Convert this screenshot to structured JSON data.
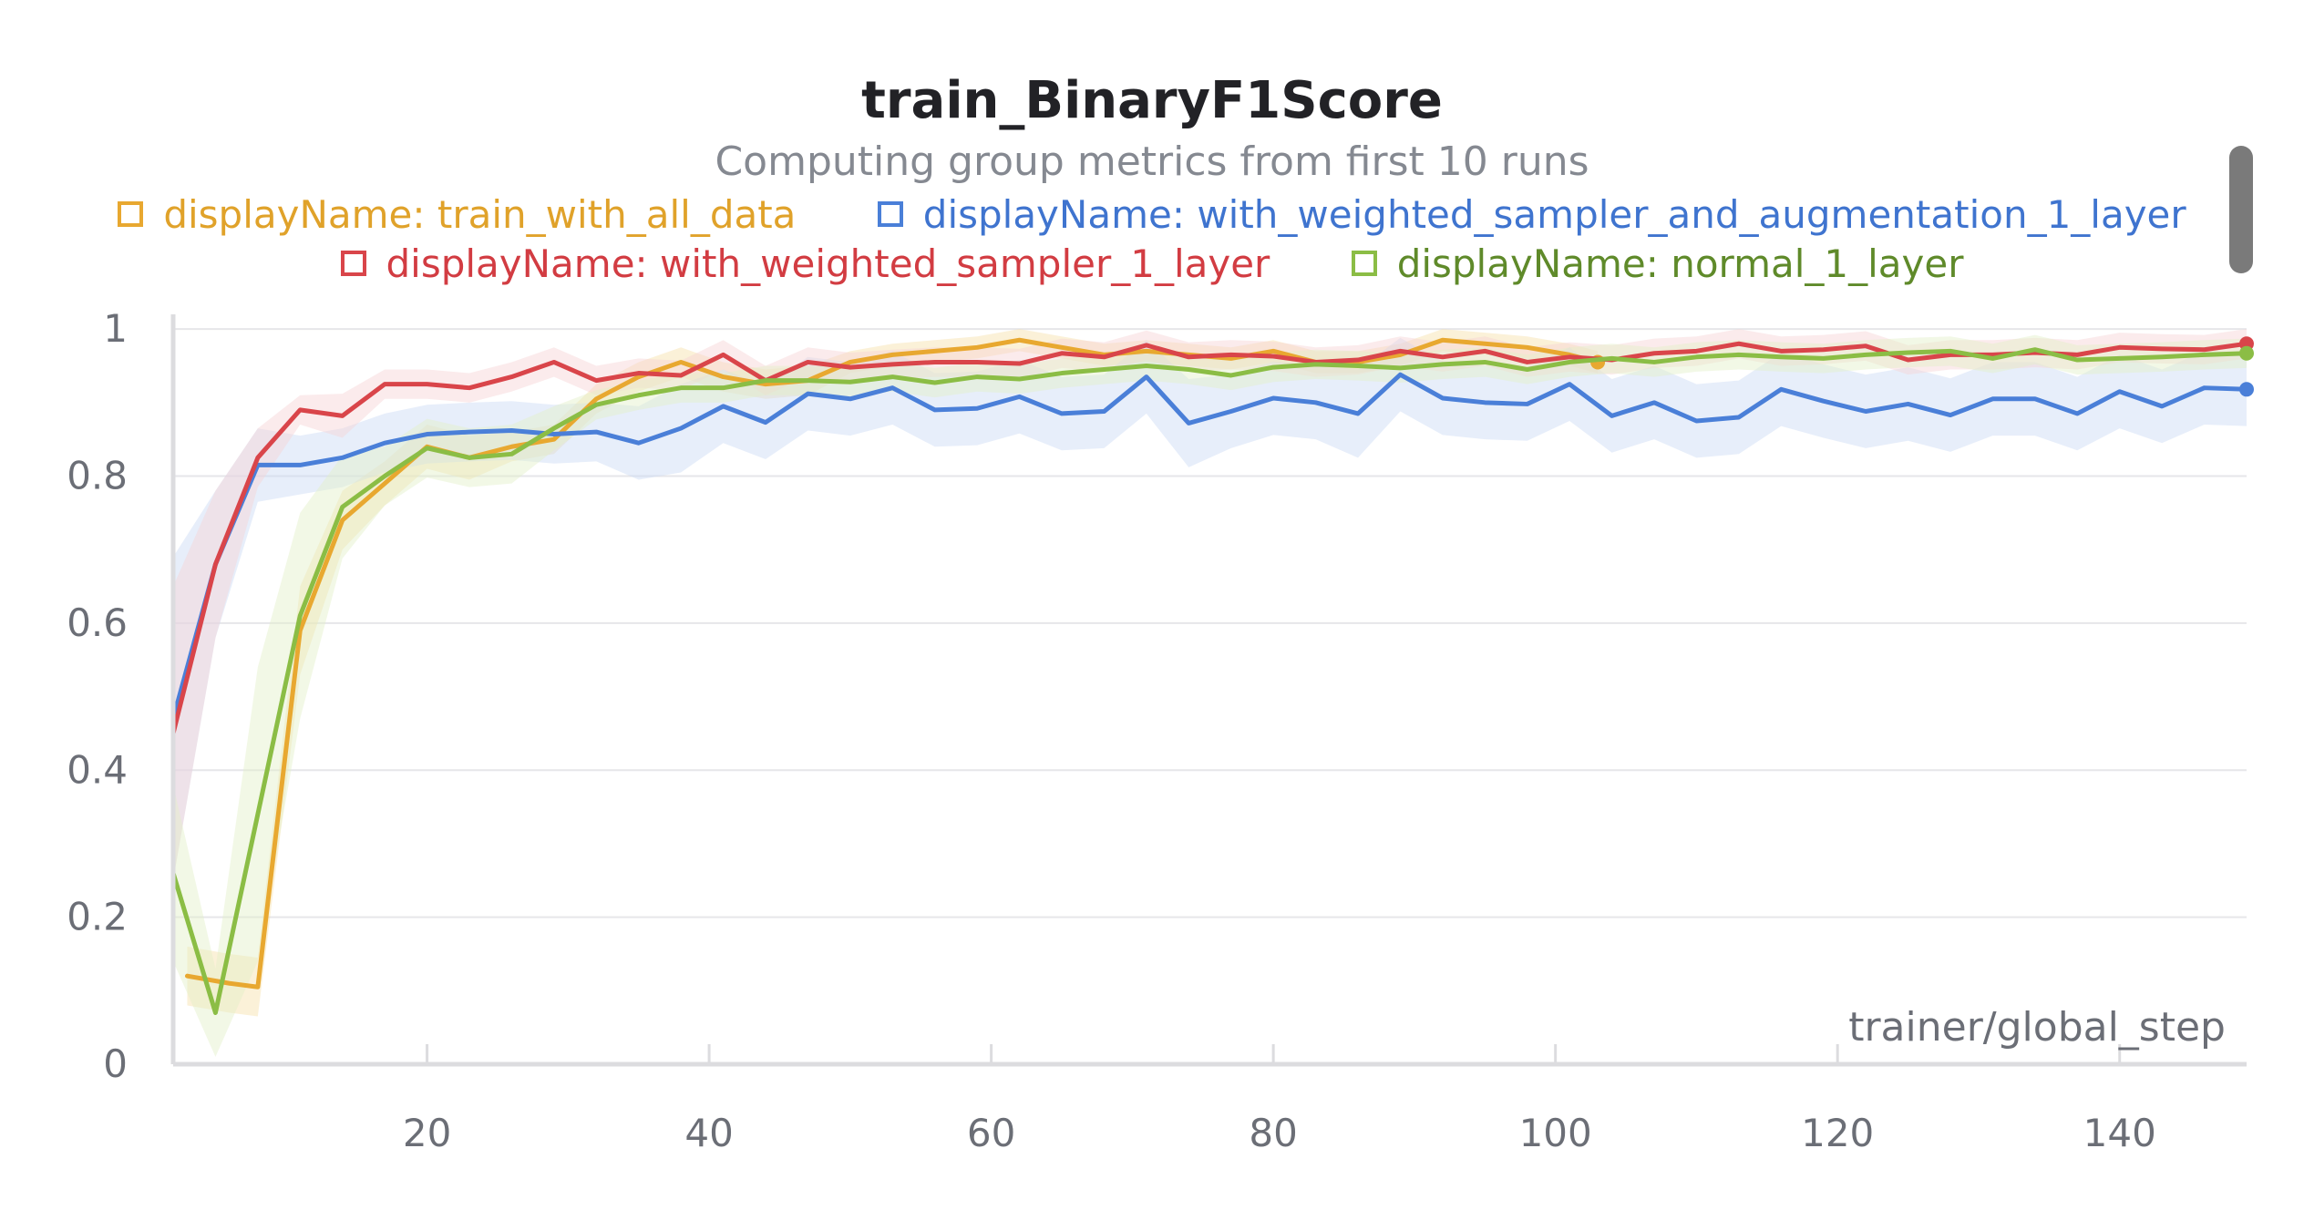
{
  "chart_data": {
    "type": "line",
    "title": "train_BinaryF1Score",
    "subtitle": "Computing group metrics from first 10 runs",
    "xlabel": "trainer/global_step",
    "ylabel": "",
    "xlim": [
      2,
      149
    ],
    "ylim": [
      0,
      1.02
    ],
    "x_ticks": [
      20,
      40,
      60,
      80,
      100,
      120,
      140
    ],
    "y_ticks": [
      0,
      0.2,
      0.4,
      0.6,
      0.8,
      1
    ],
    "y_tick_labels": [
      "0",
      "0.2",
      "0.4",
      "0.6",
      "0.8",
      "1"
    ],
    "grid": true,
    "legend_position": "top",
    "series": [
      {
        "name": "displayName: train_with_all_data",
        "color": "#e8a830",
        "band_color": "#f6dfa8",
        "x": [
          3,
          6,
          8,
          11,
          14,
          17,
          20,
          23,
          26,
          29,
          32,
          35,
          38,
          41,
          44,
          47,
          50,
          53,
          56,
          59,
          62,
          65,
          68,
          71,
          74,
          77,
          80,
          83,
          86,
          89,
          92,
          95,
          98,
          101,
          103
        ],
        "y": [
          0.12,
          0.11,
          0.105,
          0.59,
          0.74,
          0.79,
          0.84,
          0.825,
          0.84,
          0.85,
          0.905,
          0.935,
          0.955,
          0.935,
          0.925,
          0.93,
          0.955,
          0.965,
          0.97,
          0.975,
          0.985,
          0.975,
          0.965,
          0.97,
          0.965,
          0.96,
          0.97,
          0.955,
          0.955,
          0.965,
          0.985,
          0.98,
          0.975,
          0.965,
          0.955
        ],
        "band": [
          0.04,
          0.04,
          0.04,
          0.06,
          0.04,
          0.03,
          0.03,
          0.03,
          0.02,
          0.02,
          0.02,
          0.02,
          0.02,
          0.02,
          0.02,
          0.02,
          0.015,
          0.015,
          0.015,
          0.015,
          0.015,
          0.015,
          0.015,
          0.015,
          0.015,
          0.015,
          0.015,
          0.015,
          0.015,
          0.015,
          0.015,
          0.015,
          0.015,
          0.015,
          0.015
        ],
        "end_marker": true
      },
      {
        "name": "displayName: with_weighted_sampler_and_augmentation_1_layer",
        "color": "#4a7fd8",
        "band_color": "#c9daf5",
        "x": [
          2,
          5,
          8,
          11,
          14,
          17,
          20,
          23,
          26,
          29,
          32,
          35,
          38,
          41,
          44,
          47,
          50,
          53,
          56,
          59,
          62,
          65,
          68,
          71,
          74,
          77,
          80,
          83,
          86,
          89,
          92,
          95,
          98,
          101,
          104,
          107,
          110,
          113,
          116,
          119,
          122,
          125,
          128,
          131,
          134,
          137,
          140,
          143,
          146,
          149
        ],
        "y": [
          0.47,
          0.68,
          0.815,
          0.815,
          0.825,
          0.845,
          0.857,
          0.86,
          0.862,
          0.857,
          0.86,
          0.845,
          0.865,
          0.895,
          0.873,
          0.912,
          0.905,
          0.92,
          0.89,
          0.892,
          0.908,
          0.885,
          0.888,
          0.935,
          0.872,
          0.888,
          0.906,
          0.9,
          0.885,
          0.938,
          0.906,
          0.9,
          0.898,
          0.925,
          0.882,
          0.9,
          0.875,
          0.88,
          0.918,
          0.902,
          0.888,
          0.898,
          0.883,
          0.905,
          0.905,
          0.885,
          0.915,
          0.895,
          0.92,
          0.918
        ],
        "band": [
          0.22,
          0.1,
          0.05,
          0.04,
          0.04,
          0.04,
          0.04,
          0.04,
          0.04,
          0.04,
          0.04,
          0.05,
          0.06,
          0.05,
          0.05,
          0.05,
          0.05,
          0.05,
          0.05,
          0.05,
          0.05,
          0.05,
          0.05,
          0.05,
          0.06,
          0.05,
          0.05,
          0.05,
          0.06,
          0.05,
          0.05,
          0.05,
          0.05,
          0.05,
          0.05,
          0.05,
          0.05,
          0.05,
          0.05,
          0.05,
          0.05,
          0.05,
          0.05,
          0.05,
          0.05,
          0.05,
          0.05,
          0.05,
          0.05,
          0.05
        ],
        "end_marker": true
      },
      {
        "name": "displayName: with_weighted_sampler_1_layer",
        "color": "#d9454a",
        "band_color": "#f6d2d4",
        "x": [
          2,
          5,
          8,
          11,
          14,
          17,
          20,
          23,
          26,
          29,
          32,
          35,
          38,
          41,
          44,
          47,
          50,
          53,
          56,
          59,
          62,
          65,
          68,
          71,
          74,
          77,
          80,
          83,
          86,
          89,
          92,
          95,
          98,
          101,
          104,
          107,
          110,
          113,
          116,
          119,
          122,
          125,
          128,
          131,
          134,
          137,
          140,
          143,
          146,
          149
        ],
        "y": [
          0.45,
          0.68,
          0.825,
          0.89,
          0.882,
          0.925,
          0.925,
          0.92,
          0.935,
          0.955,
          0.93,
          0.94,
          0.937,
          0.965,
          0.93,
          0.955,
          0.948,
          0.952,
          0.955,
          0.955,
          0.953,
          0.967,
          0.962,
          0.978,
          0.962,
          0.965,
          0.963,
          0.955,
          0.958,
          0.97,
          0.962,
          0.97,
          0.955,
          0.962,
          0.958,
          0.967,
          0.97,
          0.98,
          0.97,
          0.972,
          0.977,
          0.958,
          0.965,
          0.965,
          0.968,
          0.965,
          0.975,
          0.973,
          0.972,
          0.98
        ],
        "band": [
          0.2,
          0.1,
          0.04,
          0.02,
          0.03,
          0.02,
          0.02,
          0.02,
          0.02,
          0.02,
          0.02,
          0.02,
          0.02,
          0.02,
          0.02,
          0.02,
          0.02,
          0.02,
          0.02,
          0.02,
          0.02,
          0.02,
          0.02,
          0.02,
          0.02,
          0.02,
          0.02,
          0.02,
          0.02,
          0.02,
          0.02,
          0.02,
          0.02,
          0.02,
          0.02,
          0.02,
          0.02,
          0.02,
          0.02,
          0.02,
          0.02,
          0.02,
          0.02,
          0.02,
          0.02,
          0.02,
          0.02,
          0.02,
          0.02,
          0.02
        ],
        "end_marker": true
      },
      {
        "name": "displayName: normal_1_layer",
        "color": "#8bbd45",
        "band_color": "#e2efc8",
        "x": [
          2,
          5,
          8,
          11,
          14,
          17,
          20,
          23,
          26,
          29,
          32,
          35,
          38,
          41,
          44,
          47,
          50,
          53,
          56,
          59,
          62,
          65,
          68,
          71,
          74,
          77,
          80,
          83,
          86,
          89,
          92,
          95,
          98,
          101,
          104,
          107,
          110,
          113,
          116,
          119,
          122,
          125,
          128,
          131,
          134,
          137,
          140,
          143,
          146,
          149
        ],
        "y": [
          0.26,
          0.07,
          0.34,
          0.61,
          0.758,
          0.8,
          0.838,
          0.825,
          0.83,
          0.865,
          0.897,
          0.91,
          0.92,
          0.92,
          0.93,
          0.93,
          0.928,
          0.935,
          0.927,
          0.935,
          0.932,
          0.94,
          0.945,
          0.95,
          0.945,
          0.937,
          0.948,
          0.952,
          0.95,
          0.947,
          0.952,
          0.955,
          0.945,
          0.955,
          0.96,
          0.955,
          0.962,
          0.965,
          0.962,
          0.96,
          0.965,
          0.968,
          0.97,
          0.96,
          0.972,
          0.958,
          0.96,
          0.962,
          0.965,
          0.967
        ],
        "band": [
          0.12,
          0.06,
          0.2,
          0.14,
          0.07,
          0.04,
          0.04,
          0.04,
          0.04,
          0.03,
          0.02,
          0.02,
          0.02,
          0.02,
          0.02,
          0.02,
          0.02,
          0.02,
          0.02,
          0.02,
          0.02,
          0.02,
          0.02,
          0.02,
          0.02,
          0.02,
          0.02,
          0.02,
          0.02,
          0.02,
          0.02,
          0.02,
          0.02,
          0.02,
          0.02,
          0.02,
          0.02,
          0.02,
          0.02,
          0.02,
          0.02,
          0.02,
          0.02,
          0.02,
          0.02,
          0.02,
          0.02,
          0.02,
          0.02,
          0.02
        ],
        "end_marker": true
      }
    ]
  }
}
